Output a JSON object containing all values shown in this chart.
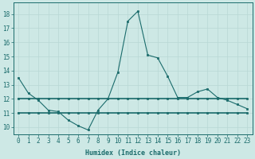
{
  "xlabel": "Humidex (Indice chaleur)",
  "xlim": [
    -0.5,
    23.5
  ],
  "ylim": [
    9.5,
    18.8
  ],
  "yticks": [
    10,
    11,
    12,
    13,
    14,
    15,
    16,
    17,
    18
  ],
  "xticks": [
    0,
    1,
    2,
    3,
    4,
    5,
    6,
    7,
    8,
    9,
    10,
    11,
    12,
    13,
    14,
    15,
    16,
    17,
    18,
    19,
    20,
    21,
    22,
    23
  ],
  "background_color": "#cde8e5",
  "line_color": "#1a6b6b",
  "grid_color": "#b8d8d5",
  "series1_x": [
    0,
    1,
    2,
    3,
    4,
    5,
    6,
    7,
    8,
    9,
    10,
    11,
    12,
    13,
    14,
    15,
    16,
    17,
    18,
    19,
    20,
    21,
    22,
    23
  ],
  "series1_y": [
    13.5,
    12.4,
    11.9,
    11.2,
    11.1,
    10.5,
    10.1,
    9.8,
    11.2,
    12.0,
    13.9,
    17.5,
    18.2,
    15.1,
    14.9,
    13.6,
    12.1,
    12.1,
    12.5,
    12.7,
    12.1,
    11.9,
    11.6,
    11.3
  ],
  "series2_x": [
    0,
    23
  ],
  "series2_y": [
    12.0,
    12.0
  ],
  "series3_x": [
    0,
    23
  ],
  "series3_y": [
    11.0,
    11.0
  ],
  "tick_fontsize": 5.5,
  "xlabel_fontsize": 6.0
}
